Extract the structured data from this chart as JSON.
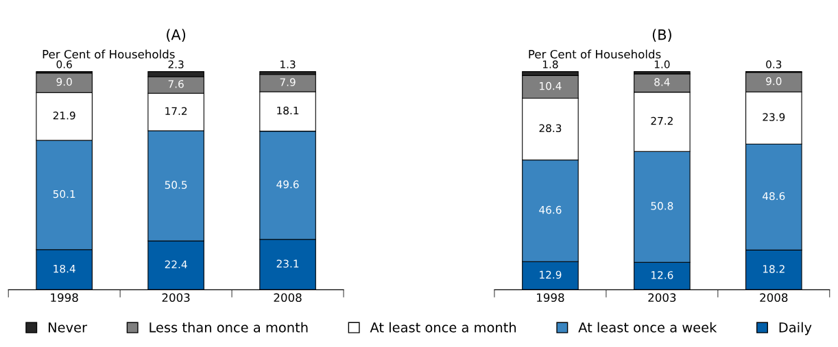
{
  "chart_data": [
    {
      "type": "bar",
      "title": "(A)",
      "ylabel": "Per Cent of Households",
      "stacked": true,
      "legend": "bottom",
      "categories": [
        "1998",
        "2003",
        "2008"
      ],
      "series": [
        {
          "name": "Daily",
          "color": "#005ea8",
          "values": [
            18.4,
            22.4,
            23.1
          ],
          "value_labels": [
            "18.4",
            "22.4",
            "23.1"
          ]
        },
        {
          "name": "At least once a week",
          "color": "#3a85c0",
          "values": [
            50.1,
            50.5,
            49.6
          ],
          "value_labels": [
            "50.1",
            "50.5",
            "49.6"
          ]
        },
        {
          "name": "At least once a month",
          "color": "#ffffff",
          "values": [
            21.9,
            17.2,
            18.1
          ],
          "value_labels": [
            "21.9",
            "17.2",
            "18.1"
          ]
        },
        {
          "name": "Less than once a month",
          "color": "#7f7f7f",
          "values": [
            9.0,
            7.6,
            7.9
          ],
          "value_labels": [
            "9.0",
            "7.6",
            "7.9"
          ]
        },
        {
          "name": "Never",
          "color": "#262626",
          "values": [
            0.6,
            2.3,
            1.3
          ],
          "value_labels": [
            "0.6",
            "2.3",
            "1.3"
          ]
        }
      ]
    },
    {
      "type": "bar",
      "title": "(B)",
      "ylabel": "Per Cent of Households",
      "stacked": true,
      "categories": [
        "1998",
        "2003",
        "2008"
      ],
      "series": [
        {
          "color": "#005ea8",
          "values": [
            12.9,
            12.6,
            18.2
          ],
          "value_labels": [
            "12.9",
            "12.6",
            "18.2"
          ]
        },
        {
          "color": "#3a85c0",
          "values": [
            46.6,
            50.8,
            48.6
          ],
          "value_labels": [
            "46.6",
            "50.8",
            "48.6"
          ]
        },
        {
          "color": "#ffffff",
          "values": [
            28.3,
            27.2,
            23.9
          ],
          "value_labels": [
            "28.3",
            "27.2",
            "23.9"
          ]
        },
        {
          "color": "#7f7f7f",
          "values": [
            10.4,
            8.4,
            9.0
          ],
          "value_labels": [
            "10.4",
            "8.4",
            "9.0"
          ]
        },
        {
          "color": "#262626",
          "values": [
            1.8,
            1.0,
            0.3
          ],
          "value_labels": [
            "1.8",
            "1.0",
            "0.3"
          ]
        }
      ]
    }
  ]
}
